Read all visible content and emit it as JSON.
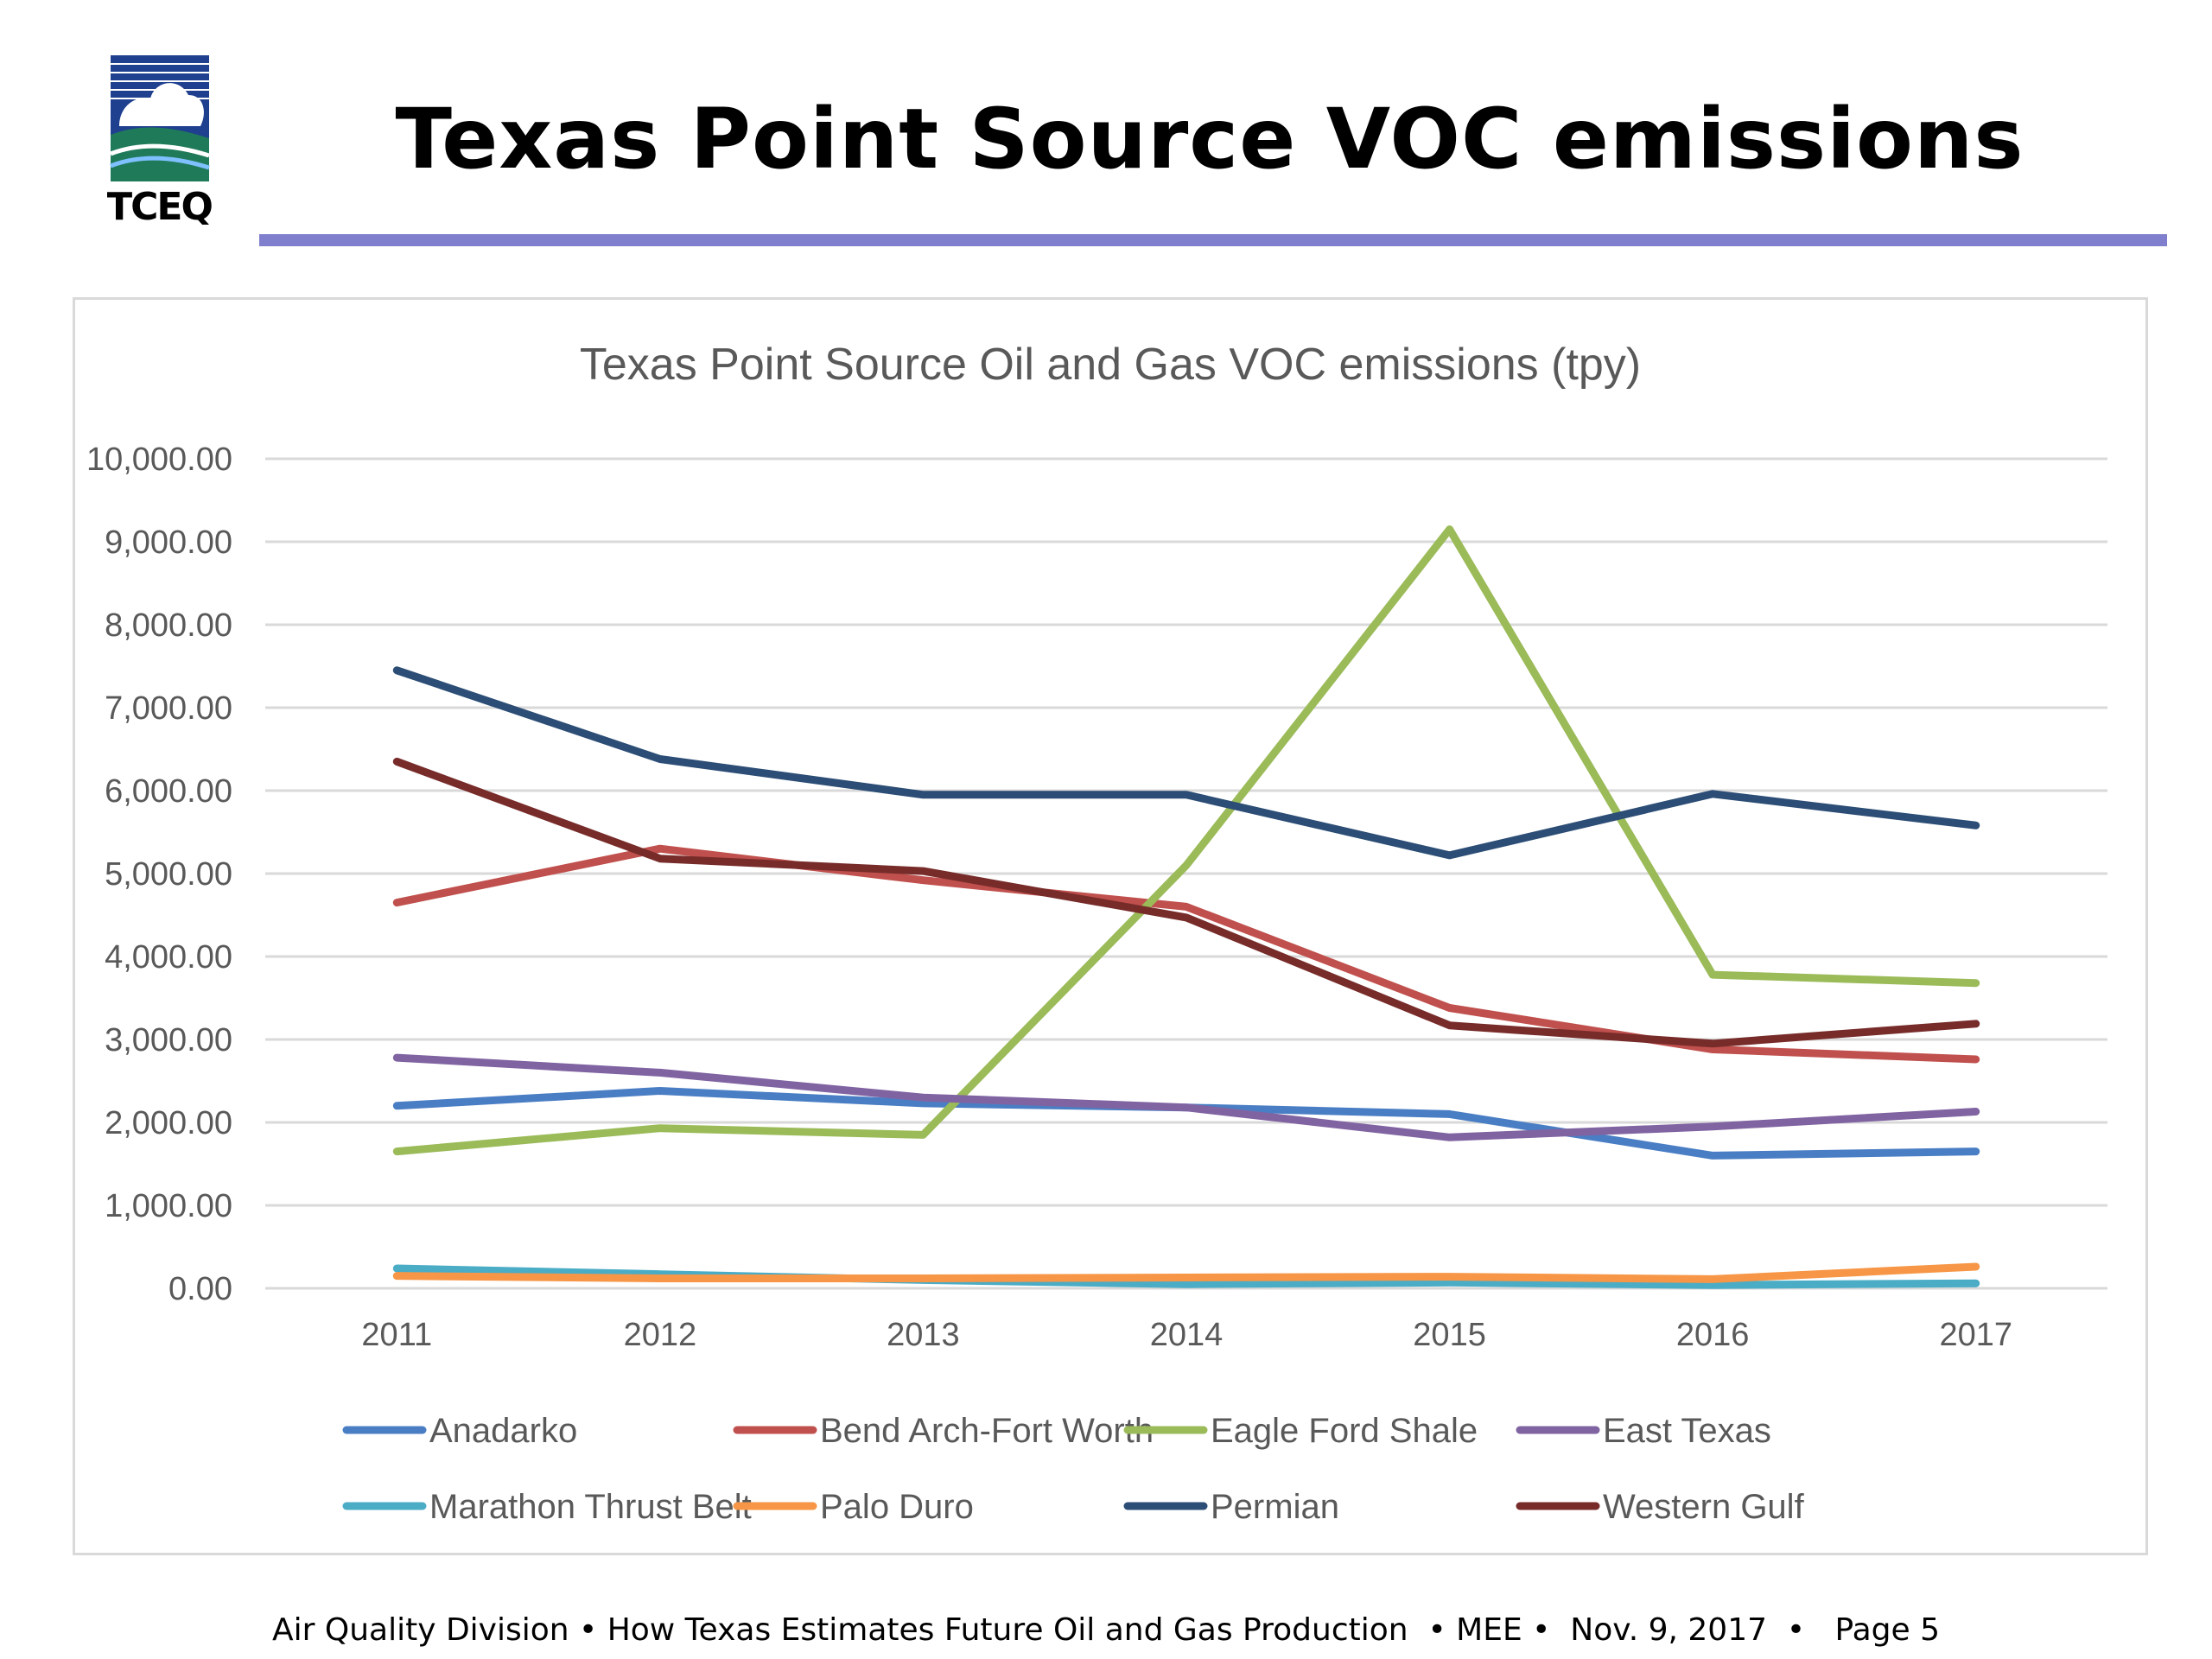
{
  "slide": {
    "logo_text": "TCEQ",
    "title": "Texas Point Source VOC emissions",
    "footer": "Air Quality Division • How Texas Estimates Future Oil and Gas Production  • MEE •  Nov. 9, 2017  •   Page 5",
    "accent_color": "#7f7fcd"
  },
  "chart_data": {
    "type": "line",
    "title": "Texas Point Source Oil and Gas VOC emissions (tpy)",
    "xlabel": "",
    "ylabel": "",
    "x": [
      "2011",
      "2012",
      "2013",
      "2014",
      "2015",
      "2016",
      "2017"
    ],
    "ylim": [
      0,
      10000
    ],
    "yticks": [
      "0.00",
      "1,000.00",
      "2,000.00",
      "3,000.00",
      "4,000.00",
      "5,000.00",
      "6,000.00",
      "7,000.00",
      "8,000.00",
      "9,000.00",
      "10,000.00"
    ],
    "grid": true,
    "legend_position": "bottom",
    "series": [
      {
        "name": "Anadarko",
        "color": "#4a7ec4",
        "values": [
          2200,
          2380,
          2230,
          2180,
          2100,
          1600,
          1650
        ]
      },
      {
        "name": "Bend Arch-Fort Worth",
        "color": "#c0504d",
        "values": [
          4650,
          5300,
          4920,
          4600,
          3380,
          2880,
          2760
        ]
      },
      {
        "name": "Eagle Ford Shale",
        "color": "#9bbb59",
        "values": [
          1650,
          1930,
          1850,
          5100,
          9150,
          3780,
          3680
        ]
      },
      {
        "name": "East Texas",
        "color": "#8064a2",
        "values": [
          2780,
          2600,
          2300,
          2180,
          1820,
          1950,
          2130
        ]
      },
      {
        "name": "Marathon Thrust Belt",
        "color": "#4bacc6",
        "values": [
          240,
          170,
          100,
          50,
          70,
          40,
          60
        ]
      },
      {
        "name": "Palo Duro",
        "color": "#f79646",
        "values": [
          150,
          120,
          120,
          130,
          140,
          110,
          260
        ]
      },
      {
        "name": "Permian",
        "color": "#2c4d75",
        "values": [
          7450,
          6380,
          5950,
          5950,
          5220,
          5960,
          5580
        ]
      },
      {
        "name": "Western Gulf",
        "color": "#772c2a",
        "values": [
          6350,
          5180,
          5030,
          4470,
          3170,
          2950,
          3190
        ]
      }
    ]
  }
}
